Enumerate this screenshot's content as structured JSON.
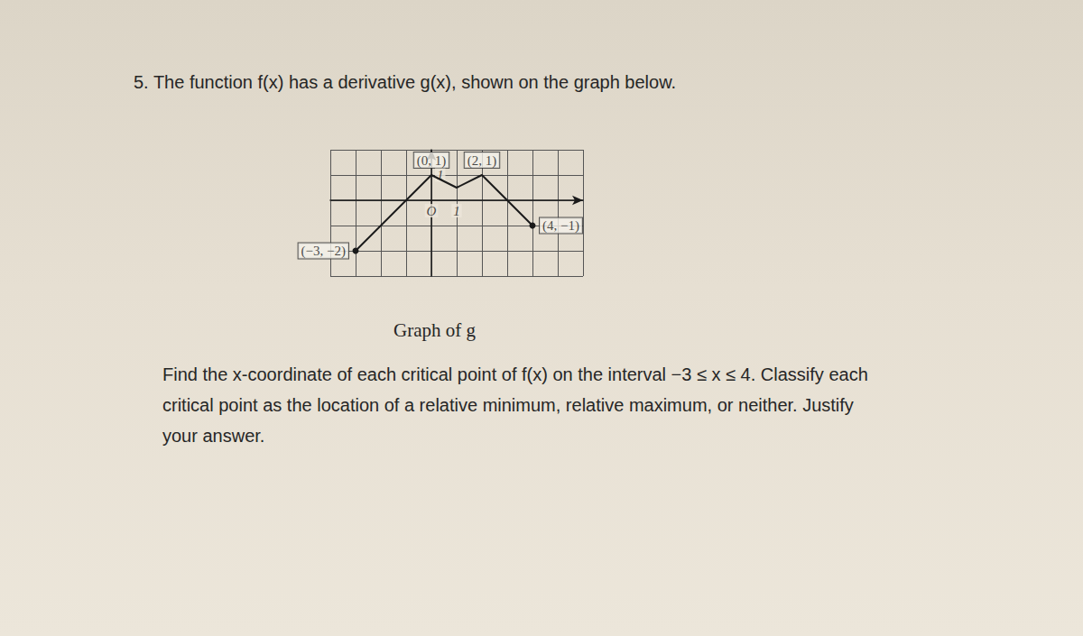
{
  "document": {
    "heading": "5. The function f(x) has a derivative g(x), shown on the graph below.",
    "caption": "Graph of g",
    "prompt": [
      "Find the x-coordinate of each critical point of f(x) on the interval −3 ≤ x ≤ 4. Classify each",
      "critical point as the location of a relative minimum, relative maximum, or neither. Justify",
      "your answer."
    ]
  },
  "chart_data": {
    "type": "line",
    "color": "#1a1a1a",
    "marker": "endpoints",
    "line_style": "solid",
    "x": [
      -3,
      0,
      1,
      2,
      4
    ],
    "values": [
      -2,
      1,
      0.5,
      1,
      -1
    ],
    "xlim": [
      -4,
      6
    ],
    "xticks": [
      -4,
      -3,
      -2,
      -1,
      0,
      1,
      2,
      3,
      4,
      5,
      6
    ],
    "ylim": [
      -3,
      2
    ],
    "yticks": [
      -3,
      -2,
      -1,
      0,
      1,
      2
    ],
    "grid": true,
    "tick_labels": false,
    "point_labels": [
      {
        "text": "(0, 1)",
        "x": 0,
        "y": 1,
        "position": "top"
      },
      {
        "text": "(2, 1)",
        "x": 2,
        "y": 1,
        "position": "top"
      },
      {
        "text": "(−3, −2)",
        "x": -3,
        "y": -2,
        "position": "left"
      },
      {
        "text": "(4, −1)",
        "x": 4,
        "y": -1,
        "position": "right"
      }
    ],
    "axis_marks": [
      {
        "text": "O",
        "x": 0,
        "y": 0,
        "position": "bottom"
      },
      {
        "text": "1",
        "x": 1,
        "y": 0,
        "position": "bottom"
      },
      {
        "text": "1",
        "x": 0,
        "y": 1,
        "position": "right"
      }
    ]
  }
}
